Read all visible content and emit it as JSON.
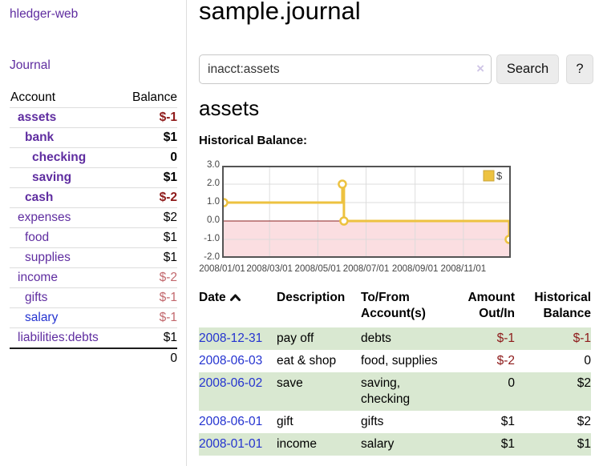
{
  "app": {
    "brand": "hledger-web",
    "nav_journal": "Journal"
  },
  "sidebar": {
    "account_header": "Account",
    "balance_header": "Balance",
    "accounts": [
      {
        "name": "assets",
        "balance": "$-1",
        "level": 1,
        "bold": true,
        "balance_color": "neg-dark",
        "link_color": "purple"
      },
      {
        "name": "bank",
        "balance": "$1",
        "level": 2,
        "bold": true,
        "balance_color": "",
        "link_color": "purple"
      },
      {
        "name": "checking",
        "balance": "0",
        "level": 3,
        "bold": true,
        "balance_color": "",
        "link_color": "purple"
      },
      {
        "name": "saving",
        "balance": "$1",
        "level": 3,
        "bold": true,
        "balance_color": "",
        "link_color": "purple"
      },
      {
        "name": "cash",
        "balance": "$-2",
        "level": 2,
        "bold": true,
        "balance_color": "neg-dark",
        "link_color": "purple"
      },
      {
        "name": "expenses",
        "balance": "$2",
        "level": 1,
        "bold": false,
        "balance_color": "",
        "link_color": "purple"
      },
      {
        "name": "food",
        "balance": "$1",
        "level": 2,
        "bold": false,
        "balance_color": "",
        "link_color": "purple"
      },
      {
        "name": "supplies",
        "balance": "$1",
        "level": 2,
        "bold": false,
        "balance_color": "",
        "link_color": "purple"
      },
      {
        "name": "income",
        "balance": "$-2",
        "level": 1,
        "bold": false,
        "balance_color": "neg-light",
        "link_color": "purple"
      },
      {
        "name": "gifts",
        "balance": "$-1",
        "level": 2,
        "bold": false,
        "balance_color": "neg-light",
        "link_color": "purple"
      },
      {
        "name": "salary",
        "balance": "$-1",
        "level": 2,
        "bold": false,
        "balance_color": "neg-light",
        "link_color": "blue"
      },
      {
        "name": "liabilities:debts",
        "balance": "$1",
        "level": 1,
        "bold": false,
        "balance_color": "",
        "link_color": "purple"
      }
    ],
    "total": "0"
  },
  "header": {
    "title": "sample.journal"
  },
  "search": {
    "value": "inacct:assets",
    "clear_label": "×",
    "button_label": "Search",
    "help_label": "?"
  },
  "account_page": {
    "heading": "assets",
    "chart_label": "Historical Balance:"
  },
  "chart_data": {
    "type": "line",
    "title": "Historical Balance",
    "step": true,
    "series": [
      {
        "name": "$",
        "color": "#edc240",
        "points": [
          {
            "date": "2008/01/01",
            "day": 0,
            "value": 1.0
          },
          {
            "date": "2008/06/01",
            "day": 152,
            "value": 2.0
          },
          {
            "date": "2008/06/03",
            "day": 154,
            "value": 0.0
          },
          {
            "date": "2008/12/31",
            "day": 365,
            "value": -1.0
          }
        ]
      }
    ],
    "x_ticks": [
      {
        "label": "2008/01/01",
        "day": 0
      },
      {
        "label": "2008/03/01",
        "day": 60
      },
      {
        "label": "2008/05/01",
        "day": 121
      },
      {
        "label": "2008/07/01",
        "day": 182
      },
      {
        "label": "2008/09/01",
        "day": 244
      },
      {
        "label": "2008/11/01",
        "day": 305
      }
    ],
    "y_ticks": [
      "3.0",
      "2.0",
      "1.0",
      "0.0",
      "-1.0",
      "-2.0"
    ],
    "ylim": [
      -2,
      3
    ],
    "xlim_days": [
      0,
      365
    ],
    "legend": {
      "label": "$",
      "position": "top-right"
    },
    "grid": true,
    "negative_region_color": "#fbdee1",
    "zero_line_color": "#8b2020",
    "border_color": "#545454"
  },
  "register": {
    "columns": {
      "date": "Date",
      "description": "Description",
      "tofrom_line1": "To/From",
      "tofrom_line2": "Account(s)",
      "amount_line1": "Amount",
      "amount_line2": "Out/In",
      "hist_line1": "Historical",
      "hist_line2": "Balance"
    },
    "rows": [
      {
        "date": "2008-12-31",
        "description": "pay off",
        "accounts": "debts",
        "amount": "$-1",
        "amount_neg": true,
        "balance": "$-1",
        "balance_neg": true,
        "shaded": true
      },
      {
        "date": "2008-06-03",
        "description": "eat & shop",
        "accounts": "food, supplies",
        "amount": "$-2",
        "amount_neg": true,
        "balance": "0",
        "balance_neg": false,
        "shaded": false
      },
      {
        "date": "2008-06-02",
        "description": "save",
        "accounts": "saving, checking",
        "amount": "0",
        "amount_neg": false,
        "balance": "$2",
        "balance_neg": false,
        "shaded": true
      },
      {
        "date": "2008-06-01",
        "description": "gift",
        "accounts": "gifts",
        "amount": "$1",
        "amount_neg": false,
        "balance": "$2",
        "balance_neg": false,
        "shaded": false
      },
      {
        "date": "2008-01-01",
        "description": "income",
        "accounts": "salary",
        "amount": "$1",
        "amount_neg": false,
        "balance": "$1",
        "balance_neg": false,
        "shaded": true
      }
    ]
  }
}
